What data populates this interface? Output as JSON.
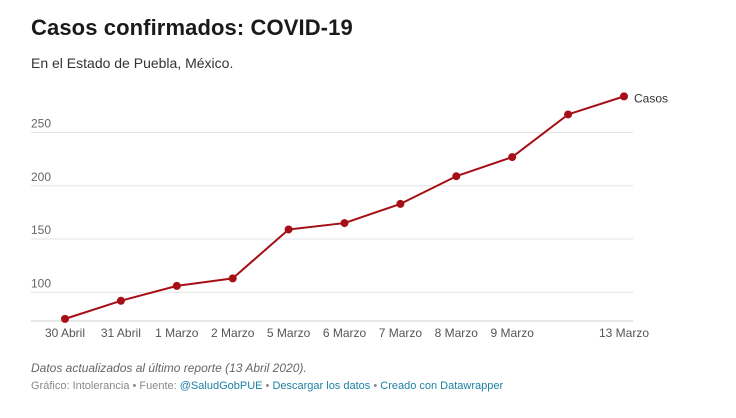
{
  "header": {
    "title": "Casos confirmados: COVID-19",
    "subtitle": "En el Estado de Puebla, México."
  },
  "chart_data": {
    "type": "line",
    "categories": [
      "30 Abril",
      "31 Abril",
      "1 Marzo",
      "2 Marzo",
      "5 Marzo",
      "6 Marzo",
      "7 Marzo",
      "8 Marzo",
      "9 Marzo",
      "",
      "13 Marzo"
    ],
    "series": [
      {
        "name": "Casos",
        "values": [
          75,
          92,
          106,
          113,
          159,
          165,
          183,
          209,
          227,
          267,
          284
        ],
        "color": "#a50f15"
      }
    ],
    "y_ticks": [
      100,
      150,
      200,
      250
    ],
    "ylim": [
      73,
      290
    ],
    "grid": true,
    "legend": "direct label at line end"
  },
  "footer": {
    "note": "Datos actualizados al último reporte (13 Abril 2020).",
    "credit_prefix": "Gráfico: Intolerancia • Fuente: ",
    "source_link": "@SaludGobPUE",
    "separator_1": " • ",
    "download_link": "Descargar los datos",
    "separator_2": " • ",
    "made_with_link": "Creado con Datawrapper"
  }
}
